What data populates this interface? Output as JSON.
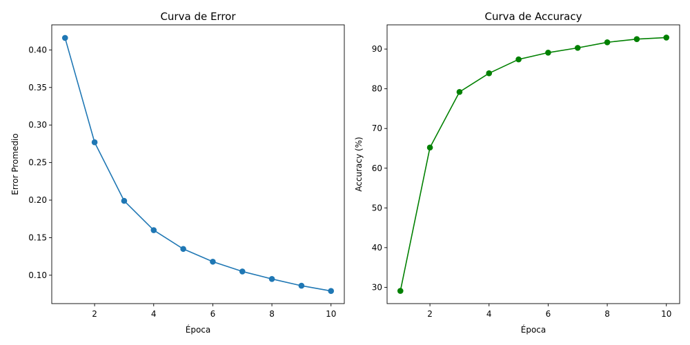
{
  "chart_data": [
    {
      "type": "line",
      "title": "Curva de Error",
      "xlabel": "Época",
      "ylabel": "Error Promedio",
      "x": [
        1,
        2,
        3,
        4,
        5,
        6,
        7,
        8,
        9,
        10
      ],
      "series": [
        {
          "values": [
            0.416,
            0.277,
            0.199,
            0.16,
            0.135,
            0.118,
            0.105,
            0.095,
            0.086,
            0.079
          ],
          "color": "#1f77b4"
        }
      ],
      "xlim": [
        0.55,
        10.45
      ],
      "ylim": [
        0.0622,
        0.4334
      ],
      "xticks": [
        2,
        4,
        6,
        8,
        10
      ],
      "xtick_labels": [
        "2",
        "4",
        "6",
        "8",
        "10"
      ],
      "yticks": [
        0.1,
        0.15,
        0.2,
        0.25,
        0.3,
        0.35,
        0.4
      ],
      "ytick_labels": [
        "0.10",
        "0.15",
        "0.20",
        "0.25",
        "0.30",
        "0.35",
        "0.40"
      ],
      "grid": false,
      "marker": "circle"
    },
    {
      "type": "line",
      "title": "Curva de Accuracy",
      "xlabel": "Época",
      "ylabel": "Accuracy (%)",
      "x": [
        1,
        2,
        3,
        4,
        5,
        6,
        7,
        8,
        9,
        10
      ],
      "series": [
        {
          "values": [
            29.1,
            65.2,
            79.2,
            83.9,
            87.4,
            89.1,
            90.3,
            91.7,
            92.5,
            92.9
          ],
          "color": "#008000"
        }
      ],
      "xlim": [
        0.55,
        10.45
      ],
      "ylim": [
        25.9,
        96.1
      ],
      "xticks": [
        2,
        4,
        6,
        8,
        10
      ],
      "xtick_labels": [
        "2",
        "4",
        "6",
        "8",
        "10"
      ],
      "yticks": [
        30,
        40,
        50,
        60,
        70,
        80,
        90
      ],
      "ytick_labels": [
        "30",
        "40",
        "50",
        "60",
        "70",
        "80",
        "90"
      ],
      "grid": false,
      "marker": "circle"
    }
  ]
}
